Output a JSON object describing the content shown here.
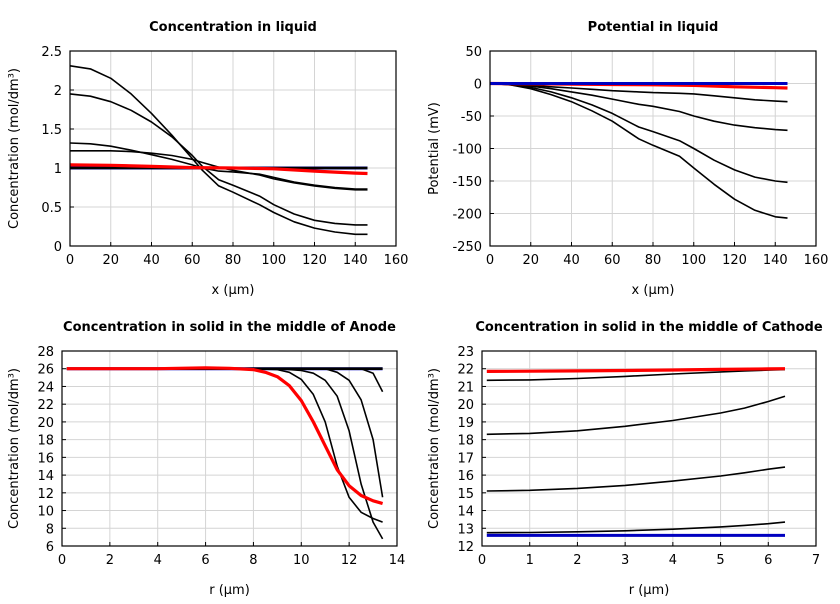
{
  "chart_data": [
    {
      "type": "line",
      "title": "Concentration in liquid",
      "xlabel": "x (µm)",
      "ylabel": "Concentration (mol/dm³)",
      "xlim": [
        0,
        160
      ],
      "ylim": [
        0,
        2.5
      ],
      "xticks": [
        "0",
        "20",
        "40",
        "60",
        "80",
        "100",
        "120",
        "140",
        "160"
      ],
      "yticks": [
        "0",
        "0.5",
        "1",
        "1.5",
        "2",
        "2.5"
      ],
      "grid": true,
      "series": [
        {
          "color": "#0000c0",
          "x": [
            0,
            146
          ],
          "y": [
            1,
            1
          ]
        },
        {
          "color": "#000000",
          "x": [
            0,
            146
          ],
          "y": [
            1,
            1
          ],
          "thick": true
        },
        {
          "color": "#000000",
          "x": [
            0,
            10,
            20,
            30,
            40,
            50,
            60,
            65,
            73,
            80,
            93,
            100,
            110,
            120,
            130,
            140,
            146
          ],
          "y": [
            2.31,
            2.27,
            2.15,
            1.95,
            1.7,
            1.42,
            1.12,
            0.97,
            0.77,
            0.69,
            0.53,
            0.43,
            0.31,
            0.23,
            0.18,
            0.15,
            0.15
          ]
        },
        {
          "color": "#000000",
          "x": [
            0,
            10,
            20,
            30,
            40,
            50,
            60,
            65,
            73,
            80,
            93,
            100,
            110,
            120,
            130,
            140,
            146
          ],
          "y": [
            1.95,
            1.92,
            1.85,
            1.74,
            1.59,
            1.4,
            1.16,
            1.02,
            0.85,
            0.78,
            0.64,
            0.53,
            0.41,
            0.33,
            0.29,
            0.27,
            0.27
          ]
        },
        {
          "color": "#000000",
          "x": [
            0,
            10,
            20,
            30,
            40,
            50,
            60,
            65,
            73,
            80,
            93,
            100,
            110,
            120,
            130,
            140,
            146
          ],
          "y": [
            1.32,
            1.31,
            1.28,
            1.23,
            1.17,
            1.11,
            1.04,
            1.0,
            0.96,
            0.95,
            0.92,
            0.88,
            0.82,
            0.78,
            0.75,
            0.73,
            0.73
          ]
        },
        {
          "color": "#000000",
          "x": [
            0,
            10,
            20,
            30,
            40,
            50,
            60,
            65,
            73,
            80,
            93,
            100,
            110,
            120,
            130,
            140,
            146
          ],
          "y": [
            1.22,
            1.22,
            1.22,
            1.21,
            1.19,
            1.16,
            1.11,
            1.07,
            1.01,
            0.97,
            0.91,
            0.86,
            0.81,
            0.77,
            0.74,
            0.72,
            0.72
          ]
        },
        {
          "color": "#ff0000",
          "x": [
            0,
            20,
            40,
            60,
            80,
            100,
            120,
            140,
            146
          ],
          "y": [
            1.04,
            1.035,
            1.02,
            1.005,
            1.0,
            0.99,
            0.96,
            0.935,
            0.93
          ]
        }
      ]
    },
    {
      "type": "line",
      "title": "Potential in liquid",
      "xlabel": "x (µm)",
      "ylabel": "Potential (mV)",
      "xlim": [
        0,
        160
      ],
      "ylim": [
        -250,
        50
      ],
      "xticks": [
        "0",
        "20",
        "40",
        "60",
        "80",
        "100",
        "120",
        "140",
        "160"
      ],
      "yticks": [
        "-250",
        "-200",
        "-150",
        "-100",
        "-50",
        "0",
        "50"
      ],
      "grid": true,
      "series": [
        {
          "color": "#000000",
          "x": [
            0,
            10,
            20,
            30,
            40,
            50,
            60,
            73,
            80,
            93,
            100,
            110,
            120,
            130,
            140,
            146
          ],
          "y": [
            0,
            -2,
            -8,
            -17,
            -28,
            -42,
            -58,
            -85,
            -95,
            -112,
            -130,
            -155,
            -178,
            -195,
            -205,
            -207
          ]
        },
        {
          "color": "#000000",
          "x": [
            0,
            10,
            20,
            30,
            40,
            50,
            60,
            73,
            80,
            93,
            100,
            110,
            120,
            130,
            140,
            146
          ],
          "y": [
            0,
            -2,
            -6,
            -13,
            -22,
            -33,
            -46,
            -67,
            -74,
            -88,
            -100,
            -118,
            -133,
            -144,
            -150,
            -152
          ]
        },
        {
          "color": "#000000",
          "x": [
            0,
            10,
            20,
            30,
            40,
            50,
            60,
            73,
            80,
            93,
            100,
            110,
            120,
            130,
            140,
            146
          ],
          "y": [
            0,
            -1,
            -4,
            -8,
            -13,
            -18,
            -24,
            -32,
            -35,
            -43,
            -50,
            -58,
            -64,
            -68,
            -71,
            -72
          ]
        },
        {
          "color": "#000000",
          "x": [
            0,
            10,
            20,
            30,
            40,
            50,
            60,
            73,
            80,
            93,
            100,
            110,
            120,
            130,
            140,
            146
          ],
          "y": [
            0,
            -1,
            -3,
            -5,
            -7,
            -9,
            -11,
            -13,
            -14,
            -15,
            -16,
            -19,
            -22,
            -25,
            -27,
            -28
          ]
        },
        {
          "color": "#ff0000",
          "x": [
            0,
            20,
            40,
            60,
            80,
            100,
            120,
            140,
            146
          ],
          "y": [
            0,
            -0.5,
            -1,
            -1.5,
            -2,
            -3,
            -5,
            -6.5,
            -7
          ]
        },
        {
          "color": "#0000c0",
          "x": [
            0,
            146
          ],
          "y": [
            0,
            0
          ]
        }
      ]
    },
    {
      "type": "line",
      "title": "Concentration in solid in the middle of Anode",
      "xlabel": "r (µm)",
      "ylabel": "Concentration (mol/dm³)",
      "xlim": [
        0,
        14
      ],
      "ylim": [
        6,
        28
      ],
      "xticks": [
        "0",
        "2",
        "4",
        "6",
        "8",
        "10",
        "12",
        "14"
      ],
      "yticks": [
        "6",
        "8",
        "10",
        "12",
        "14",
        "16",
        "18",
        "20",
        "22",
        "24",
        "26",
        "28"
      ],
      "grid": true,
      "series": [
        {
          "color": "#0000c0",
          "x": [
            0.2,
            13.4
          ],
          "y": [
            26,
            26
          ]
        },
        {
          "color": "#000000",
          "x": [
            0.2,
            13.4
          ],
          "y": [
            26,
            26
          ],
          "thick": true
        },
        {
          "color": "#000000",
          "x": [
            0.2,
            8,
            9,
            9.5,
            10,
            10.5,
            11,
            11.5,
            12,
            12.5,
            13,
            13.4
          ],
          "y": [
            26,
            26,
            25.9,
            25.6,
            24.8,
            23.1,
            20,
            15,
            11.5,
            9.8,
            9.1,
            8.7
          ]
        },
        {
          "color": "#000000",
          "x": [
            0.2,
            9,
            10,
            10.5,
            11,
            11.5,
            12,
            12.5,
            13,
            13.4
          ],
          "y": [
            26,
            26,
            25.8,
            25.5,
            24.7,
            22.9,
            19,
            13,
            8.7,
            6.8
          ]
        },
        {
          "color": "#000000",
          "x": [
            0.2,
            11,
            11.5,
            12,
            12.5,
            13,
            13.4
          ],
          "y": [
            26,
            26,
            25.6,
            24.7,
            22.5,
            18,
            11.5
          ]
        },
        {
          "color": "#000000",
          "x": [
            0.2,
            12.5,
            13,
            13.4
          ],
          "y": [
            26,
            26,
            25.5,
            23.4
          ]
        },
        {
          "color": "#ff0000",
          "x": [
            0.2,
            2,
            4,
            6,
            7,
            8,
            8.5,
            9,
            9.5,
            10,
            10.5,
            11,
            11.5,
            12,
            12.5,
            13,
            13.4
          ],
          "y": [
            26,
            26,
            26,
            26.1,
            26.05,
            25.9,
            25.6,
            25.1,
            24.1,
            22.4,
            20,
            17.3,
            14.6,
            12.8,
            11.7,
            11.1,
            10.8
          ]
        }
      ]
    },
    {
      "type": "line",
      "title": "Concentration in solid in the middle of Cathode",
      "xlabel": "r (µm)",
      "ylabel": "Concentration (mol/dm³)",
      "xlim": [
        0,
        7
      ],
      "ylim": [
        12,
        23
      ],
      "xticks": [
        "0",
        "1",
        "2",
        "3",
        "4",
        "5",
        "6",
        "7"
      ],
      "yticks": [
        "12",
        "13",
        "14",
        "15",
        "16",
        "17",
        "18",
        "19",
        "20",
        "21",
        "22",
        "23"
      ],
      "grid": true,
      "series": [
        {
          "color": "#0000c0",
          "x": [
            0.1,
            6.35
          ],
          "y": [
            12.6,
            12.6
          ]
        },
        {
          "color": "#000000",
          "x": [
            0.1,
            1,
            2,
            3,
            4,
            5,
            5.5,
            6,
            6.35
          ],
          "y": [
            12.75,
            12.76,
            12.8,
            12.86,
            12.95,
            13.08,
            13.16,
            13.26,
            13.35
          ]
        },
        {
          "color": "#000000",
          "x": [
            0.1,
            1,
            2,
            3,
            4,
            5,
            5.5,
            6,
            6.35
          ],
          "y": [
            15.1,
            15.14,
            15.25,
            15.42,
            15.66,
            15.95,
            16.13,
            16.33,
            16.45
          ]
        },
        {
          "color": "#000000",
          "x": [
            0.1,
            1,
            2,
            3,
            4,
            5,
            5.5,
            6,
            6.35
          ],
          "y": [
            18.3,
            18.35,
            18.5,
            18.75,
            19.08,
            19.5,
            19.78,
            20.15,
            20.45
          ]
        },
        {
          "color": "#000000",
          "x": [
            0.1,
            1,
            2,
            3,
            4,
            5,
            5.5,
            6,
            6.35
          ],
          "y": [
            21.35,
            21.37,
            21.45,
            21.57,
            21.7,
            21.82,
            21.87,
            21.92,
            21.95
          ]
        },
        {
          "color": "#ff0000",
          "x": [
            0.1,
            1,
            2,
            3,
            4,
            5,
            6,
            6.35
          ],
          "y": [
            21.85,
            21.86,
            21.88,
            21.9,
            21.93,
            21.96,
            21.99,
            22.0
          ]
        }
      ]
    }
  ]
}
